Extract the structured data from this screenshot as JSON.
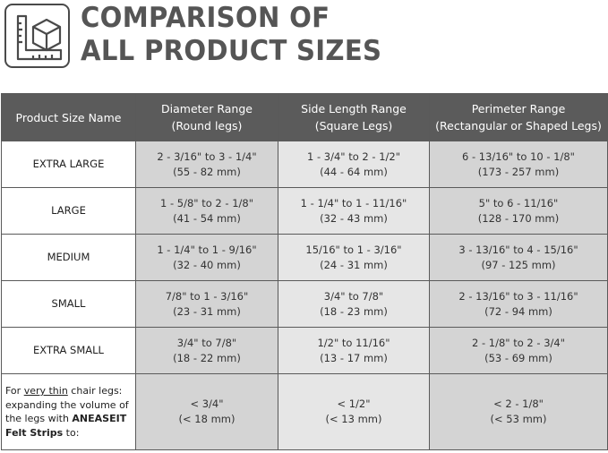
{
  "header": {
    "title_line1": "COMPARISON OF",
    "title_line2": "ALL PRODUCT SIZES",
    "logo_icon": "ruler-cube-icon"
  },
  "table": {
    "columns": [
      {
        "line1": "Product Size Name",
        "line2": ""
      },
      {
        "line1": "Diameter Range",
        "line2": "(Round legs)"
      },
      {
        "line1": "Side Length Range",
        "line2": "(Square Legs)"
      },
      {
        "line1": "Perimeter Range",
        "line2": "(Rectangular or Shaped Legs)"
      }
    ],
    "rows": [
      {
        "name": "EXTRA LARGE",
        "diameter": {
          "in": "2 - 3/16\" to 3 - 1/4\"",
          "mm": "(55 - 82 mm)"
        },
        "side": {
          "in": "1 - 3/4\" to 2 - 1/2\"",
          "mm": "(44 - 64 mm)"
        },
        "perimeter": {
          "in": "6 - 13/16\" to 10 - 1/8\"",
          "mm": "(173 - 257 mm)"
        }
      },
      {
        "name": "LARGE",
        "diameter": {
          "in": "1 - 5/8\" to 2 - 1/8\"",
          "mm": "(41 - 54 mm)"
        },
        "side": {
          "in": "1 - 1/4\" to 1 - 11/16\"",
          "mm": "(32 - 43 mm)"
        },
        "perimeter": {
          "in": "5\" to 6 - 11/16\"",
          "mm": "(128 - 170 mm)"
        }
      },
      {
        "name": "MEDIUM",
        "diameter": {
          "in": "1 - 1/4\" to 1 - 9/16\"",
          "mm": "(32 - 40 mm)"
        },
        "side": {
          "in": "15/16\" to 1 - 3/16\"",
          "mm": "(24 - 31 mm)"
        },
        "perimeter": {
          "in": "3 - 13/16\" to 4 - 15/16\"",
          "mm": "(97 - 125 mm)"
        }
      },
      {
        "name": "SMALL",
        "diameter": {
          "in": "7/8\" to  1 - 3/16\"",
          "mm": "(23 - 31 mm)"
        },
        "side": {
          "in": "3/4\" to 7/8\"",
          "mm": "(18 - 23 mm)"
        },
        "perimeter": {
          "in": "2 - 13/16\" to 3 - 11/16\"",
          "mm": "(72 - 94 mm)"
        }
      },
      {
        "name": "EXTRA SMALL",
        "diameter": {
          "in": "3/4\" to 7/8\"",
          "mm": "(18 - 22 mm)"
        },
        "side": {
          "in": "1/2\" to 11/16\"",
          "mm": "(13 - 17 mm)"
        },
        "perimeter": {
          "in": "2 - 1/8\" to 2 - 3/4\"",
          "mm": "(53 - 69 mm)"
        }
      }
    ],
    "note": {
      "prefix": "For ",
      "underlined": "very thin",
      "after_underline": " chair legs: expanding the volume of the legs with ",
      "brand": "ANEASEIT Felt Strips",
      "suffix": " to:",
      "diameter": {
        "in": "< 3/4\"",
        "mm": "(< 18 mm)"
      },
      "side": {
        "in": "< 1/2\"",
        "mm": "(< 13 mm)"
      },
      "perimeter": {
        "in": "< 2 - 1/8\"",
        "mm": "(< 53 mm)"
      }
    }
  }
}
